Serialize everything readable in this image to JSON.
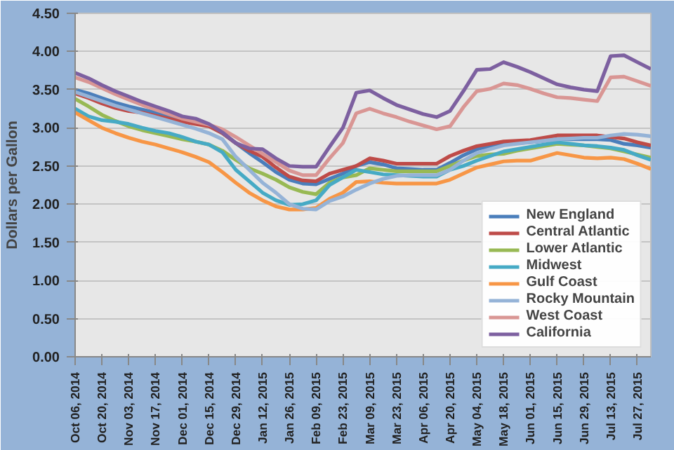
{
  "chart_data": {
    "type": "line",
    "ylabel": "Dollars per Gallon",
    "categories": [
      "Oct 06, 2014",
      null,
      "Oct 20, 2014",
      null,
      "Nov 03, 2014",
      null,
      "Nov 17, 2014",
      null,
      "Dec 01, 2014",
      null,
      "Dec 15, 2014",
      null,
      "Dec 29, 2014",
      null,
      "Jan 12, 2015",
      null,
      "Jan 26, 2015",
      null,
      "Feb 09, 2015",
      null,
      "Feb 23, 2015",
      null,
      "Mar 09, 2015",
      null,
      "Mar 23, 2015",
      null,
      "Apr 06, 2015",
      null,
      "Apr 20, 2015",
      null,
      "May 04, 2015",
      null,
      "May 18, 2015",
      null,
      "Jun 01, 2015",
      null,
      "Jun 15, 2015",
      null,
      "Jun 29, 2015",
      null,
      "Jul 13, 2015",
      null,
      "Jul 27, 2015",
      null
    ],
    "series": [
      {
        "name": "New England",
        "color": "#4a7ebb",
        "values": [
          3.5,
          3.45,
          3.39,
          3.33,
          3.28,
          3.24,
          3.2,
          3.16,
          3.11,
          3.07,
          3.03,
          2.93,
          2.8,
          2.67,
          2.55,
          2.42,
          2.32,
          2.27,
          2.26,
          2.33,
          2.4,
          2.5,
          2.55,
          2.52,
          2.47,
          2.46,
          2.45,
          2.45,
          2.54,
          2.64,
          2.72,
          2.76,
          2.78,
          2.8,
          2.81,
          2.83,
          2.85,
          2.85,
          2.85,
          2.85,
          2.84,
          2.79,
          2.77,
          2.74
        ]
      },
      {
        "name": "Central Atlantic",
        "color": "#be4b48",
        "values": [
          3.45,
          3.39,
          3.32,
          3.26,
          3.22,
          3.2,
          3.16,
          3.12,
          3.08,
          3.05,
          3.02,
          2.93,
          2.8,
          2.7,
          2.62,
          2.48,
          2.36,
          2.31,
          2.3,
          2.4,
          2.45,
          2.5,
          2.6,
          2.57,
          2.53,
          2.53,
          2.53,
          2.53,
          2.63,
          2.7,
          2.76,
          2.79,
          2.82,
          2.83,
          2.84,
          2.87,
          2.9,
          2.9,
          2.9,
          2.9,
          2.88,
          2.86,
          2.81,
          2.77
        ]
      },
      {
        "name": "Lower Atlantic",
        "color": "#98b954",
        "values": [
          3.38,
          3.28,
          3.17,
          3.09,
          3.02,
          2.97,
          2.93,
          2.89,
          2.85,
          2.82,
          2.78,
          2.7,
          2.58,
          2.47,
          2.4,
          2.32,
          2.22,
          2.16,
          2.13,
          2.28,
          2.35,
          2.38,
          2.47,
          2.45,
          2.43,
          2.43,
          2.43,
          2.43,
          2.5,
          2.57,
          2.63,
          2.65,
          2.66,
          2.7,
          2.73,
          2.76,
          2.79,
          2.78,
          2.77,
          2.75,
          2.73,
          2.69,
          2.65,
          2.61
        ]
      },
      {
        "name": "Midwest",
        "color": "#46aac5",
        "values": [
          3.25,
          3.15,
          3.1,
          3.08,
          3.05,
          3.0,
          2.96,
          2.93,
          2.88,
          2.82,
          2.78,
          2.68,
          2.45,
          2.3,
          2.15,
          2.05,
          1.99,
          2.0,
          2.05,
          2.25,
          2.35,
          2.45,
          2.42,
          2.39,
          2.38,
          2.37,
          2.36,
          2.36,
          2.45,
          2.5,
          2.57,
          2.63,
          2.69,
          2.72,
          2.75,
          2.78,
          2.81,
          2.79,
          2.77,
          2.76,
          2.74,
          2.71,
          2.64,
          2.58
        ]
      },
      {
        "name": "Gulf Coast",
        "color": "#f79646",
        "values": [
          3.2,
          3.1,
          3.0,
          2.93,
          2.87,
          2.82,
          2.78,
          2.73,
          2.68,
          2.62,
          2.55,
          2.42,
          2.28,
          2.15,
          2.05,
          1.97,
          1.93,
          1.93,
          1.95,
          2.07,
          2.15,
          2.29,
          2.3,
          2.28,
          2.27,
          2.27,
          2.27,
          2.27,
          2.32,
          2.4,
          2.48,
          2.52,
          2.56,
          2.57,
          2.57,
          2.62,
          2.67,
          2.64,
          2.61,
          2.6,
          2.61,
          2.59,
          2.53,
          2.46
        ]
      },
      {
        "name": "Rocky Mountain",
        "color": "#95b3d7",
        "values": [
          3.47,
          3.41,
          3.35,
          3.29,
          3.24,
          3.19,
          3.14,
          3.09,
          3.04,
          2.99,
          2.93,
          2.85,
          2.62,
          2.45,
          2.28,
          2.15,
          2.0,
          1.94,
          1.93,
          2.04,
          2.1,
          2.19,
          2.27,
          2.33,
          2.37,
          2.38,
          2.38,
          2.38,
          2.45,
          2.57,
          2.67,
          2.72,
          2.77,
          2.79,
          2.81,
          2.83,
          2.85,
          2.86,
          2.87,
          2.87,
          2.9,
          2.92,
          2.91,
          2.89
        ]
      },
      {
        "name": "West Coast",
        "color": "#d99694",
        "values": [
          3.66,
          3.6,
          3.52,
          3.44,
          3.37,
          3.3,
          3.24,
          3.18,
          3.12,
          3.08,
          3.04,
          2.98,
          2.88,
          2.77,
          2.66,
          2.55,
          2.44,
          2.38,
          2.38,
          2.6,
          2.8,
          3.19,
          3.25,
          3.19,
          3.14,
          3.08,
          3.03,
          2.98,
          3.02,
          3.27,
          3.48,
          3.51,
          3.58,
          3.56,
          3.51,
          3.45,
          3.4,
          3.39,
          3.37,
          3.35,
          3.66,
          3.67,
          3.61,
          3.55
        ]
      },
      {
        "name": "California",
        "color": "#7d60a0",
        "values": [
          3.72,
          3.65,
          3.56,
          3.48,
          3.41,
          3.34,
          3.28,
          3.22,
          3.15,
          3.12,
          3.05,
          2.94,
          2.8,
          2.73,
          2.72,
          2.6,
          2.5,
          2.49,
          2.49,
          2.75,
          3.0,
          3.46,
          3.49,
          3.39,
          3.3,
          3.24,
          3.18,
          3.14,
          3.22,
          3.48,
          3.76,
          3.77,
          3.86,
          3.8,
          3.73,
          3.65,
          3.57,
          3.53,
          3.5,
          3.48,
          3.94,
          3.95,
          3.86,
          3.77
        ]
      }
    ],
    "ylim": [
      0,
      4.5
    ],
    "yticks": [
      {
        "value": 0,
        "label": "0.00"
      },
      {
        "value": 0.5,
        "label": "0.50"
      },
      {
        "value": 1,
        "label": "1.00"
      },
      {
        "value": 1.5,
        "label": "1.50"
      },
      {
        "value": 2,
        "label": "2.00"
      },
      {
        "value": 2.5,
        "label": "2.50"
      },
      {
        "value": 3,
        "label": "3.00"
      },
      {
        "value": 3.5,
        "label": "3.50"
      },
      {
        "value": 4,
        "label": "4.00"
      },
      {
        "value": 4.5,
        "label": "4.50"
      }
    ],
    "grid": "y",
    "legend": "bottom right",
    "line_style": "solid"
  }
}
